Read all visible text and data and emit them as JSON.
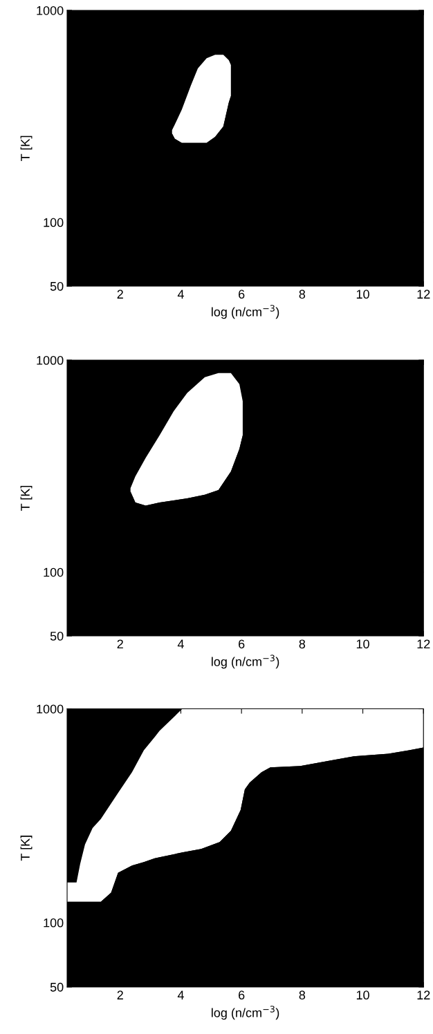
{
  "chart_data": [
    {
      "type": "area",
      "xlabel": "log (n/cm$^{−3}$)",
      "ylabel": "T [K]",
      "xlim": [
        0.25,
        12
      ],
      "ylim": [
        50,
        1000
      ],
      "log": "y",
      "xticks": [
        2,
        4,
        6,
        8,
        10,
        12
      ],
      "yticks": [
        50,
        100,
        1000
      ],
      "grid": false,
      "series": [
        {
          "color": "#ffffff",
          "x": [
            3.71,
            3.8,
            4.03,
            4.33,
            4.56,
            4.85,
            5.13,
            5.4,
            5.58,
            5.65
          ],
          "values": [
            272,
            289,
            340,
            442,
            532,
            594,
            617,
            617,
            582,
            552
          ]
        },
        {
          "color": "#000000",
          "x": [
            3.71,
            3.8,
            4.03,
            4.33,
            4.56,
            4.85,
            5.13,
            5.4,
            5.58,
            5.65
          ],
          "values": [
            262,
            248,
            237,
            237,
            237,
            237,
            253,
            283,
            367,
            395
          ]
        }
      ]
    },
    {
      "type": "area",
      "xlabel": "log (n/cm$^{−3}$)",
      "ylabel": "T [K]",
      "xlim": [
        0.25,
        12
      ],
      "ylim": [
        50,
        1000
      ],
      "log": "y",
      "xticks": [
        2,
        4,
        6,
        8,
        10,
        12
      ],
      "yticks": [
        50,
        100,
        1000
      ],
      "grid": false,
      "series": [
        {
          "color": "#ffffff",
          "x": [
            2.34,
            2.5,
            2.84,
            3.3,
            3.76,
            4.21,
            4.79,
            5.24,
            5.65,
            5.93,
            6.04
          ],
          "values": [
            249,
            283,
            346,
            442,
            573,
            700,
            830,
            869,
            869,
            771,
            640
          ]
        },
        {
          "color": "#000000",
          "x": [
            2.34,
            2.5,
            2.84,
            3.3,
            3.76,
            4.21,
            4.79,
            5.24,
            5.65,
            5.93,
            6.04
          ],
          "values": [
            240,
            213,
            206,
            213,
            218,
            223,
            232,
            244,
            298,
            381,
            442
          ]
        }
      ]
    },
    {
      "type": "area",
      "xlabel": "log (n/cm$^{−3}$)",
      "ylabel": "T [K]",
      "xlim": [
        0.25,
        12
      ],
      "ylim": [
        50,
        1000
      ],
      "log": "y",
      "xticks": [
        2,
        4,
        6,
        8,
        10,
        12
      ],
      "yticks": [
        50,
        100,
        1000
      ],
      "grid": false,
      "series": [
        {
          "color": "#ffffff",
          "x": [
            0.25,
            0.56,
            0.68,
            0.84,
            1.09,
            1.36,
            1.7,
            1.93,
            2.39,
            2.78,
            3.14,
            3.3,
            4.05,
            4.67,
            5.28,
            5.65,
            5.97,
            6.11,
            6.27,
            6.66,
            6.95,
            7.94,
            8.94,
            9.69,
            10.84,
            11.52,
            12
          ],
          "values": [
            154,
            154,
            188,
            232,
            277,
            305,
            361,
            404,
            505,
            640,
            738,
            789,
            1000,
            1000,
            1000,
            1000,
            1000,
            1000,
            1000,
            1000,
            1000,
            1000,
            1000,
            1000,
            1000,
            1000,
            1000
          ]
        },
        {
          "color": "#000000",
          "x": [
            0.25,
            0.56,
            0.68,
            0.84,
            1.09,
            1.36,
            1.7,
            1.93,
            2.39,
            2.78,
            3.14,
            3.3,
            4.05,
            4.67,
            5.28,
            5.65,
            5.97,
            6.11,
            6.27,
            6.66,
            6.95,
            7.94,
            8.94,
            9.69,
            10.84,
            11.52,
            12
          ],
          "values": [
            125,
            125,
            125,
            125,
            125,
            125,
            138,
            171,
            185,
            192,
            200,
            202,
            213,
            221,
            238,
            269,
            336,
            420,
            452,
            505,
            532,
            540,
            573,
            599,
            617,
            640,
            659
          ]
        }
      ]
    }
  ]
}
